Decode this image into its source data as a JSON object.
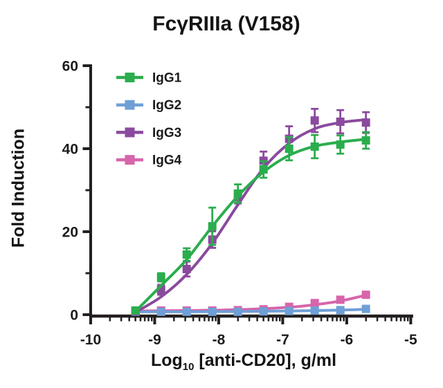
{
  "title": "FcγRIIIa (V158)",
  "colors": {
    "axis": "#231f20",
    "text": "#141414",
    "background": "#ffffff",
    "igg1_green": "#2bad4e",
    "igg2_blue": "#6f9fd6",
    "igg3_purple": "#8a4a9d",
    "igg4_pink": "#d765ab"
  },
  "chart_data": {
    "type": "line",
    "title": "FcγRIIIa (V158)",
    "ylabel": "Fold Induction",
    "xlabel": {
      "prefix": "Log",
      "sub": "10",
      "rest": " [anti-CD20], g/ml"
    },
    "xlim": [
      -10,
      -5
    ],
    "ylim": [
      0,
      60
    ],
    "x_major_ticks": [
      -10,
      -9,
      -8,
      -7,
      -6,
      -5
    ],
    "x_minor_tick_style": "log10 minor ticks (2-9 per decade)",
    "y_major_ticks": [
      0,
      20,
      40,
      60
    ],
    "y_minor_ticks": [
      10,
      30,
      50
    ],
    "grid": false,
    "legend_position": "top-left inside plot",
    "marker": "square",
    "error_bars": "symmetric, capped, colored per series",
    "x": [
      -9.3,
      -8.9,
      -8.5,
      -8.1,
      -7.7,
      -7.3,
      -6.9,
      -6.5,
      -6.1,
      -5.7
    ],
    "series": [
      {
        "name": "IgG1",
        "color": "#2bad4e",
        "values": [
          1.0,
          9.0,
          14.5,
          21.3,
          29.2,
          35.0,
          40.0,
          40.5,
          41.0,
          42.0
        ],
        "errors": [
          0.4,
          1.0,
          1.5,
          4.5,
          2.2,
          2.0,
          2.8,
          2.8,
          2.2,
          2.0
        ],
        "curve": [
          [
            -9.3,
            0.8
          ],
          [
            -8.9,
            7.0
          ],
          [
            -8.5,
            13.3
          ],
          [
            -8.1,
            21.3
          ],
          [
            -7.7,
            28.6
          ],
          [
            -7.3,
            34.4
          ],
          [
            -6.9,
            38.4
          ],
          [
            -6.5,
            40.6
          ],
          [
            -6.1,
            41.6
          ],
          [
            -5.7,
            42.3
          ]
        ]
      },
      {
        "name": "IgG2",
        "color": "#6f9fd6",
        "values": [
          0.7,
          0.7,
          0.7,
          0.7,
          0.7,
          0.8,
          0.9,
          1.0,
          1.1,
          1.4
        ],
        "errors": [
          0.2,
          0.2,
          0.2,
          0.2,
          0.2,
          0.2,
          0.2,
          0.2,
          0.3,
          0.3
        ],
        "curve": [
          [
            -9.3,
            0.7
          ],
          [
            -8.5,
            0.7
          ],
          [
            -7.7,
            0.75
          ],
          [
            -6.9,
            0.9
          ],
          [
            -6.1,
            1.1
          ],
          [
            -5.7,
            1.3
          ]
        ]
      },
      {
        "name": "IgG3",
        "color": "#8a4a9d",
        "values": [
          0.8,
          6.0,
          11.0,
          18.1,
          28.3,
          37.1,
          42.4,
          46.8,
          46.5,
          46.3
        ],
        "errors": [
          0.4,
          1.2,
          1.8,
          2.0,
          1.5,
          2.2,
          3.0,
          2.8,
          2.8,
          2.5
        ],
        "curve": [
          [
            -9.3,
            0.6
          ],
          [
            -8.9,
            4.3
          ],
          [
            -8.5,
            9.7
          ],
          [
            -8.1,
            17.2
          ],
          [
            -7.7,
            26.5
          ],
          [
            -7.3,
            35.3
          ],
          [
            -6.9,
            41.3
          ],
          [
            -6.5,
            44.8
          ],
          [
            -6.1,
            46.3
          ],
          [
            -5.7,
            47.0
          ]
        ]
      },
      {
        "name": "IgG4",
        "color": "#d765ab",
        "values": [
          0.9,
          1.0,
          1.0,
          1.0,
          1.1,
          1.3,
          1.9,
          2.8,
          3.6,
          4.8
        ],
        "errors": [
          0.2,
          0.2,
          0.2,
          0.2,
          0.2,
          0.3,
          0.4,
          0.5,
          0.6,
          0.7
        ],
        "curve": [
          [
            -9.3,
            0.9
          ],
          [
            -8.5,
            1.0
          ],
          [
            -7.7,
            1.2
          ],
          [
            -6.9,
            1.8
          ],
          [
            -6.5,
            2.4
          ],
          [
            -6.1,
            3.3
          ],
          [
            -5.7,
            4.7
          ]
        ]
      }
    ]
  }
}
